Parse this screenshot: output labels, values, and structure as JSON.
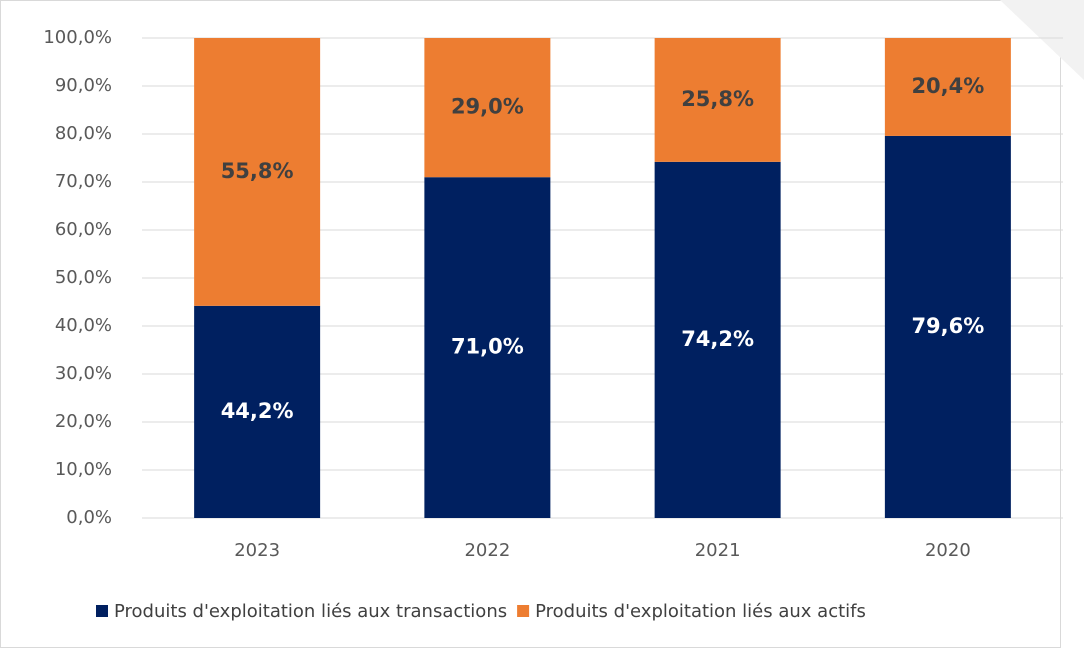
{
  "chart_data": {
    "type": "stacked_bar",
    "categories": [
      "2023",
      "2022",
      "2021",
      "2020"
    ],
    "series": [
      {
        "name": "Produits d'exploitation liés aux transactions",
        "color": "#002060",
        "values": [
          44.2,
          71.0,
          74.2,
          79.6
        ],
        "value_labels": [
          "44,2%",
          "71,0%",
          "74,2%",
          "79,6%"
        ]
      },
      {
        "name": "Produits d'exploitation liés aux actifs",
        "color": "#ed7d31",
        "values": [
          55.8,
          29.0,
          25.8,
          20.4
        ],
        "value_labels": [
          "55,8%",
          "29,0%",
          "25,8%",
          "20,4%"
        ]
      }
    ],
    "ylim": [
      0,
      100
    ],
    "yticks": [
      {
        "value": 0,
        "label": "0,0%"
      },
      {
        "value": 10,
        "label": "10,0%"
      },
      {
        "value": 20,
        "label": "20,0%"
      },
      {
        "value": 30,
        "label": "30,0%"
      },
      {
        "value": 40,
        "label": "40,0%"
      },
      {
        "value": 50,
        "label": "50,0%"
      },
      {
        "value": 60,
        "label": "60,0%"
      },
      {
        "value": 70,
        "label": "70,0%"
      },
      {
        "value": 80,
        "label": "80,0%"
      },
      {
        "value": 90,
        "label": "90,0%"
      },
      {
        "value": 100,
        "label": "100,0%"
      }
    ],
    "grid": true,
    "legend": "bottom"
  }
}
